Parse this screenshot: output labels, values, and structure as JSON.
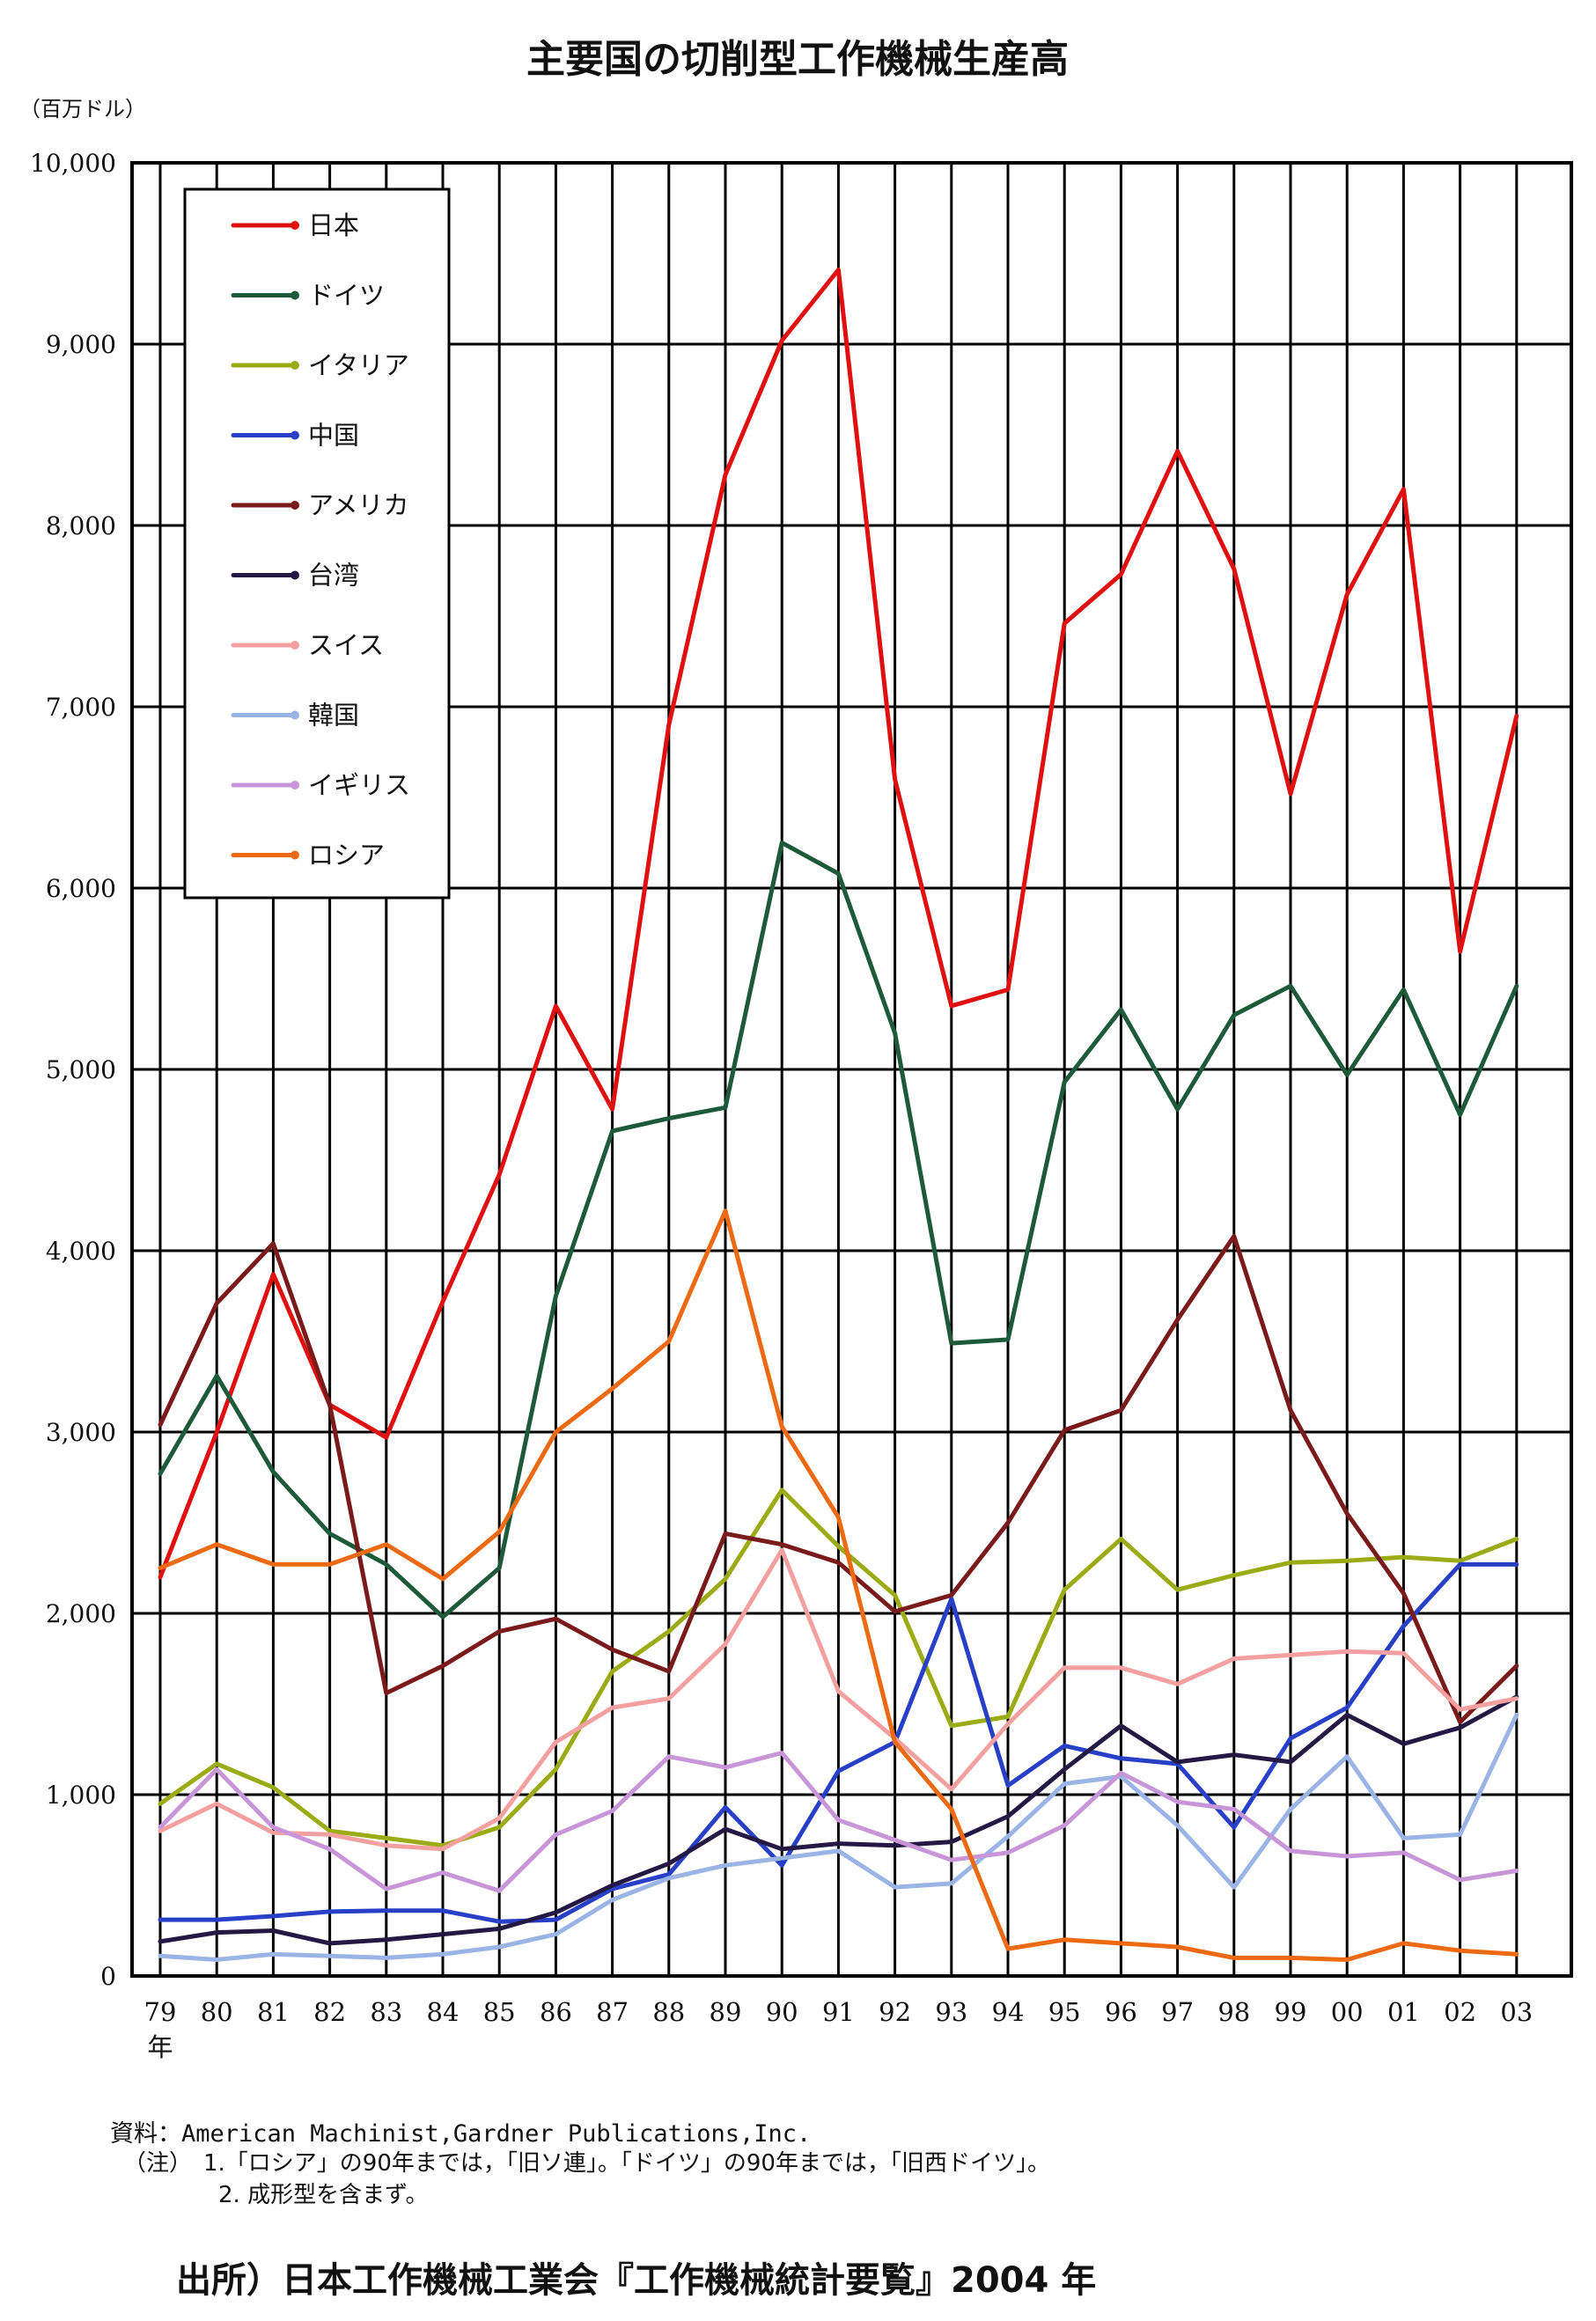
{
  "chart_data": {
    "type": "line",
    "title": "主要国の切削型工作機械生産高",
    "unit_label": "（百万ドル）",
    "ylim": [
      0,
      10000
    ],
    "y_ticks": [
      {
        "value": 0,
        "label": "0"
      },
      {
        "value": 1000,
        "label": "1,000"
      },
      {
        "value": 2000,
        "label": "2,000"
      },
      {
        "value": 3000,
        "label": "3,000"
      },
      {
        "value": 4000,
        "label": "4,000"
      },
      {
        "value": 5000,
        "label": "5,000"
      },
      {
        "value": 6000,
        "label": "6,000"
      },
      {
        "value": 7000,
        "label": "7,000"
      },
      {
        "value": 8000,
        "label": "8,000"
      },
      {
        "value": 9000,
        "label": "9,000"
      },
      {
        "value": 10000,
        "label": "10,000"
      }
    ],
    "categories": [
      "79",
      "80",
      "81",
      "82",
      "83",
      "84",
      "85",
      "86",
      "87",
      "88",
      "89",
      "90",
      "91",
      "92",
      "93",
      "94",
      "95",
      "96",
      "97",
      "98",
      "99",
      "00",
      "01",
      "02",
      "03"
    ],
    "x_suffix": "年",
    "grid": true,
    "legend_position": "top-left",
    "series": [
      {
        "name": "日本",
        "color": "#e01010",
        "values": [
          2200,
          3000,
          3870,
          3150,
          2970,
          3720,
          4420,
          5350,
          4780,
          6900,
          8280,
          9020,
          9410,
          6600,
          5350,
          5440,
          7460,
          7730,
          8410,
          7760,
          6520,
          7620,
          8200,
          5650,
          6950
        ]
      },
      {
        "name": "ドイツ",
        "color": "#1d5a3a",
        "values": [
          2770,
          3310,
          2780,
          2440,
          2270,
          1980,
          2250,
          3750,
          4660,
          4730,
          4790,
          6250,
          6080,
          5200,
          3490,
          3510,
          4930,
          5330,
          4780,
          5300,
          5460,
          4970,
          5440,
          4750,
          5460
        ]
      },
      {
        "name": "イタリア",
        "color": "#9aab14",
        "values": [
          950,
          1170,
          1040,
          800,
          760,
          720,
          820,
          1140,
          1680,
          1900,
          2190,
          2680,
          2370,
          2100,
          1380,
          1430,
          2130,
          2410,
          2130,
          2210,
          2280,
          2290,
          2310,
          2290,
          2410
        ]
      },
      {
        "name": "中国",
        "color": "#2840c8",
        "values": [
          310,
          310,
          330,
          355,
          360,
          360,
          300,
          310,
          480,
          560,
          930,
          610,
          1130,
          1290,
          2080,
          1050,
          1270,
          1200,
          1170,
          820,
          1310,
          1480,
          1930,
          2270,
          2270
        ]
      },
      {
        "name": "アメリカ",
        "color": "#7a1a1a",
        "values": [
          3040,
          3710,
          4040,
          3150,
          1560,
          1710,
          1900,
          1970,
          1800,
          1680,
          2440,
          2380,
          2280,
          2010,
          2100,
          2500,
          3010,
          3120,
          3620,
          4080,
          3120,
          2550,
          2110,
          1400,
          1710
        ]
      },
      {
        "name": "台湾",
        "color": "#241845",
        "values": [
          190,
          240,
          250,
          180,
          200,
          230,
          260,
          350,
          500,
          620,
          810,
          700,
          730,
          720,
          740,
          880,
          1140,
          1380,
          1180,
          1220,
          1180,
          1440,
          1280,
          1370,
          1540
        ]
      },
      {
        "name": "スイス",
        "color": "#f4a0a0",
        "values": [
          800,
          950,
          790,
          780,
          720,
          700,
          870,
          1290,
          1480,
          1530,
          1830,
          2350,
          1570,
          1310,
          1030,
          1390,
          1700,
          1700,
          1610,
          1750,
          1770,
          1790,
          1780,
          1470,
          1530
        ]
      },
      {
        "name": "韓国",
        "color": "#9ab4e6",
        "values": [
          110,
          90,
          120,
          110,
          100,
          120,
          160,
          230,
          420,
          540,
          610,
          650,
          690,
          490,
          510,
          770,
          1060,
          1100,
          830,
          490,
          920,
          1210,
          760,
          780,
          1440
        ]
      },
      {
        "name": "イギリス",
        "color": "#c896d8",
        "values": [
          820,
          1140,
          820,
          700,
          480,
          570,
          470,
          780,
          910,
          1210,
          1150,
          1230,
          860,
          750,
          640,
          680,
          830,
          1120,
          960,
          920,
          690,
          660,
          680,
          530,
          580
        ]
      },
      {
        "name": "ロシア",
        "color": "#ee6a12",
        "values": [
          2250,
          2380,
          2270,
          2270,
          2380,
          2190,
          2450,
          3000,
          3240,
          3500,
          4220,
          3030,
          2530,
          1290,
          920,
          150,
          200,
          180,
          160,
          100,
          100,
          90,
          180,
          140,
          120
        ]
      }
    ]
  },
  "notes": {
    "source_line": "資料：American Machinist,Gardner Publications,Inc.",
    "note_line1": "（注）　1.「ロシア」の90年までは，「旧ソ連」。「ドイツ」の90年までは，「旧西ドイツ」。",
    "note_line2": "2. 成形型を含まず。"
  },
  "footer": {
    "source": "出所）日本工作機械工業会『工作機械統計要覧』2004 年"
  }
}
